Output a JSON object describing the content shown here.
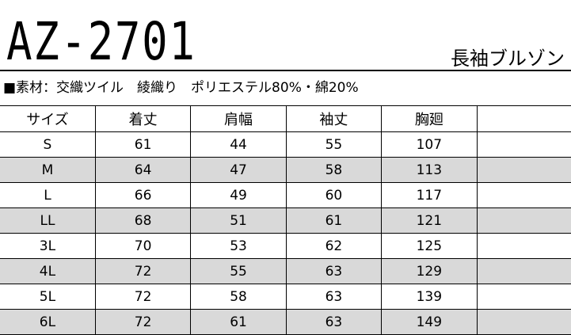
{
  "product": {
    "code": "AZ-2701",
    "type": "長袖ブルゾン",
    "material": "■素材：交織ツイル　綾織り　ポリエステル80%・綿20%"
  },
  "table": {
    "headers": [
      "サイズ",
      "着丈",
      "肩幅",
      "袖丈",
      "胸廻",
      ""
    ],
    "rows": [
      [
        "S",
        "61",
        "44",
        "55",
        "107",
        ""
      ],
      [
        "M",
        "64",
        "47",
        "58",
        "113",
        ""
      ],
      [
        "L",
        "66",
        "49",
        "60",
        "117",
        ""
      ],
      [
        "LL",
        "68",
        "51",
        "61",
        "121",
        ""
      ],
      [
        "3L",
        "70",
        "53",
        "62",
        "125",
        ""
      ],
      [
        "4L",
        "72",
        "55",
        "63",
        "129",
        ""
      ],
      [
        "5L",
        "72",
        "58",
        "63",
        "139",
        ""
      ],
      [
        "6L",
        "72",
        "61",
        "63",
        "149",
        ""
      ]
    ]
  },
  "colors": {
    "stripe": "#d9d9d9"
  }
}
